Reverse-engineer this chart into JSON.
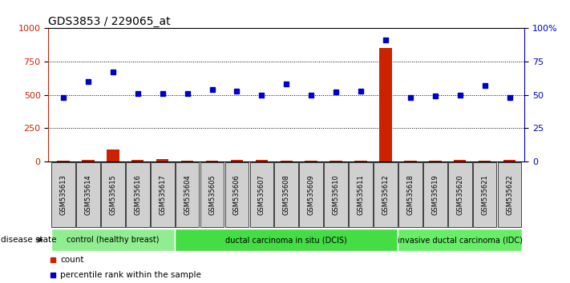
{
  "title": "GDS3853 / 229065_at",
  "samples": [
    "GSM535613",
    "GSM535614",
    "GSM535615",
    "GSM535616",
    "GSM535617",
    "GSM535604",
    "GSM535605",
    "GSM535606",
    "GSM535607",
    "GSM535608",
    "GSM535609",
    "GSM535610",
    "GSM535611",
    "GSM535612",
    "GSM535618",
    "GSM535619",
    "GSM535620",
    "GSM535621",
    "GSM535622"
  ],
  "count_values": [
    5,
    8,
    90,
    12,
    15,
    5,
    5,
    8,
    8,
    5,
    5,
    5,
    5,
    850,
    5,
    5,
    8,
    5,
    8
  ],
  "percentile_values": [
    48,
    60,
    67,
    51,
    51,
    51,
    54,
    53,
    50,
    58,
    50,
    52,
    53,
    91,
    48,
    49,
    50,
    57,
    48
  ],
  "groups": [
    {
      "label": "control (healthy breast)",
      "start": 0,
      "end": 5,
      "color": "#90ee90"
    },
    {
      "label": "ductal carcinoma in situ (DCIS)",
      "start": 5,
      "end": 14,
      "color": "#44dd44"
    },
    {
      "label": "invasive ductal carcinoma (IDC)",
      "start": 14,
      "end": 19,
      "color": "#66ee66"
    }
  ],
  "ylim_left": [
    0,
    1000
  ],
  "ylim_right": [
    0,
    100
  ],
  "yticks_left": [
    0,
    250,
    500,
    750,
    1000
  ],
  "yticks_right": [
    0,
    25,
    50,
    75,
    100
  ],
  "left_tick_labels": [
    "0",
    "250",
    "500",
    "750",
    "1000"
  ],
  "right_tick_labels": [
    "0",
    "25",
    "50",
    "75",
    "100%"
  ],
  "count_color": "#cc2200",
  "percentile_color": "#0000cc",
  "bar_bg_color": "#d0d0d0",
  "disease_state_label": "disease state",
  "legend_count": "count",
  "legend_percentile": "percentile rank within the sample",
  "title_fontsize": 10,
  "tick_fontsize": 8,
  "sample_fontsize": 6
}
